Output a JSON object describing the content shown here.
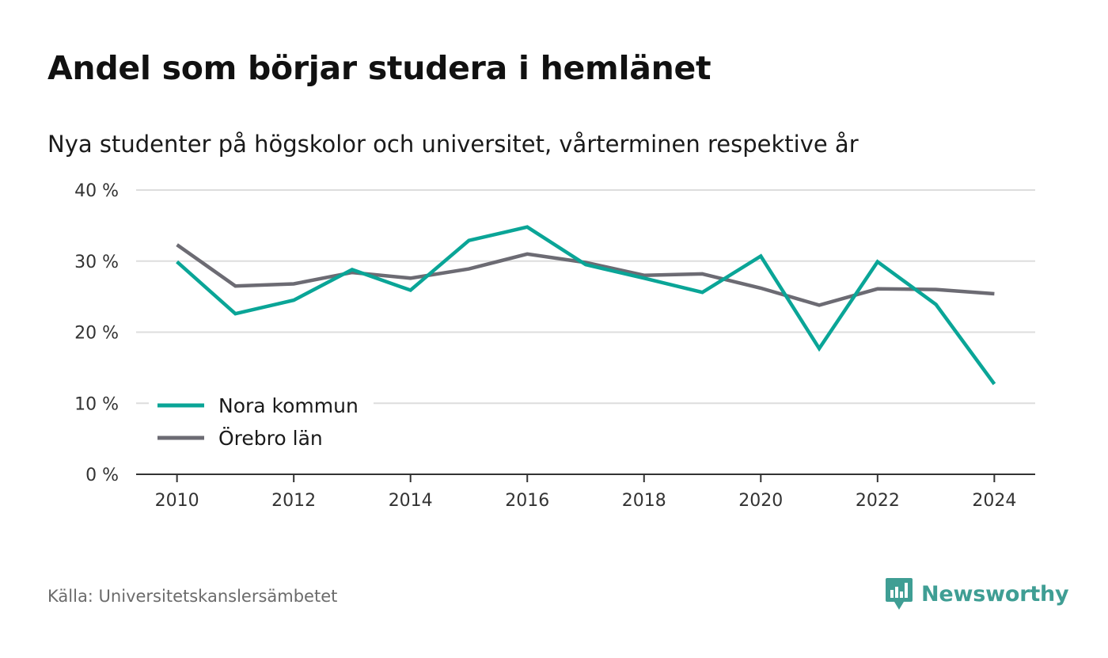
{
  "header": {
    "title": "Andel som börjar studera i hemlänet",
    "subtitle": "Nya studenter på högskolor och universitet, vårterminen respektive år"
  },
  "footer": {
    "source": "Källa: Universitetskanslersämbetet",
    "brand": "Newsworthy"
  },
  "colors": {
    "nora": "#0aa597",
    "orebro": "#6c6b73",
    "grid": "#dddddd",
    "axis": "#333333",
    "brand": "#3f9e94"
  },
  "icons": {
    "brand_logo": "newsworthy-logo-icon"
  },
  "chart_data": {
    "type": "line",
    "title": "Andel som börjar studera i hemlänet",
    "subtitle": "Nya studenter på högskolor och universitet, vårterminen respektive år",
    "xlabel": "",
    "ylabel": "",
    "x": [
      2010,
      2011,
      2012,
      2013,
      2014,
      2015,
      2016,
      2017,
      2018,
      2019,
      2020,
      2021,
      2022,
      2023,
      2024
    ],
    "xticks": [
      2010,
      2012,
      2014,
      2016,
      2018,
      2020,
      2022,
      2024
    ],
    "xtick_labels": [
      "2010",
      "2012",
      "2014",
      "2016",
      "2018",
      "2020",
      "2022",
      "2024"
    ],
    "yticks": [
      0,
      10,
      20,
      30,
      40
    ],
    "ytick_labels": [
      "0 %",
      "10 %",
      "20 %",
      "30 %",
      "40 %"
    ],
    "ylim": [
      0,
      40
    ],
    "xlim": [
      2009.3,
      2024.7
    ],
    "grid": true,
    "legend_position": "bottom-left",
    "series": [
      {
        "name": "Nora kommun",
        "color": "#0aa597",
        "values": [
          29.9,
          22.6,
          24.5,
          28.8,
          25.9,
          32.9,
          34.8,
          29.5,
          27.6,
          25.6,
          30.7,
          17.7,
          29.9,
          23.9,
          12.7
        ]
      },
      {
        "name": "Örebro län",
        "color": "#6c6b73",
        "values": [
          32.3,
          26.5,
          26.8,
          28.4,
          27.6,
          28.9,
          31.0,
          29.8,
          28.0,
          28.2,
          26.2,
          23.8,
          26.1,
          26.0,
          25.4
        ]
      }
    ]
  }
}
